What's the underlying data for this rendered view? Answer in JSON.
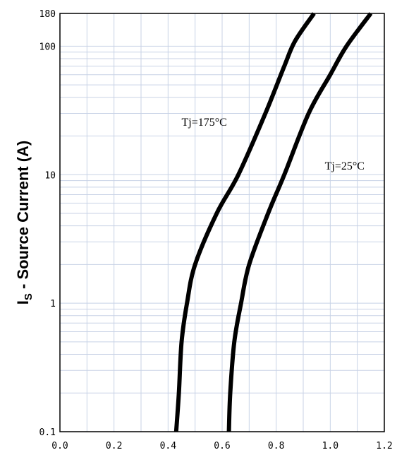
{
  "chart_data": {
    "type": "line",
    "title": "",
    "xlabel": "",
    "ylabel": {
      "main": "I",
      "subscript": "S",
      "rest": " - Source Current (A)"
    },
    "xlim": [
      0.0,
      1.2
    ],
    "ylim": [
      0.1,
      180
    ],
    "yscale": "log",
    "grid": true,
    "x_ticks": [
      0.0,
      0.2,
      0.4,
      0.6,
      0.8,
      1.0,
      1.2
    ],
    "x_tick_labels": [
      "0.0",
      "0.2",
      "0.4",
      "0.6",
      "0.8",
      "1.0",
      "1.2"
    ],
    "y_ticks": [
      0.1,
      1,
      10,
      100,
      180
    ],
    "y_tick_labels": [
      "0.1",
      "1",
      "10",
      "100",
      "180"
    ],
    "series": [
      {
        "name": "Tj=175°C",
        "points": [
          [
            0.43,
            0.1
          ],
          [
            0.44,
            0.2
          ],
          [
            0.45,
            0.5
          ],
          [
            0.47,
            1.0
          ],
          [
            0.5,
            2.0
          ],
          [
            0.58,
            5.0
          ],
          [
            0.66,
            10
          ],
          [
            0.76,
            30
          ],
          [
            0.83,
            70
          ],
          [
            0.87,
            110
          ],
          [
            0.94,
            180
          ]
        ],
        "label": "Tj=175°C",
        "label_pos": [
          0.45,
          24
        ]
      },
      {
        "name": "Tj=25°C",
        "points": [
          [
            0.625,
            0.1
          ],
          [
            0.63,
            0.2
          ],
          [
            0.645,
            0.5
          ],
          [
            0.67,
            1.0
          ],
          [
            0.7,
            2.0
          ],
          [
            0.77,
            5.0
          ],
          [
            0.83,
            10
          ],
          [
            0.92,
            30
          ],
          [
            1.0,
            60
          ],
          [
            1.06,
            100
          ],
          [
            1.15,
            180
          ]
        ],
        "label": "Tj=25°C",
        "label_pos": [
          0.98,
          11
        ]
      }
    ],
    "colors": {
      "line": "#000000",
      "grid": "#c8d2e6",
      "plot_border": "#000000",
      "background": "#ffffff"
    }
  }
}
